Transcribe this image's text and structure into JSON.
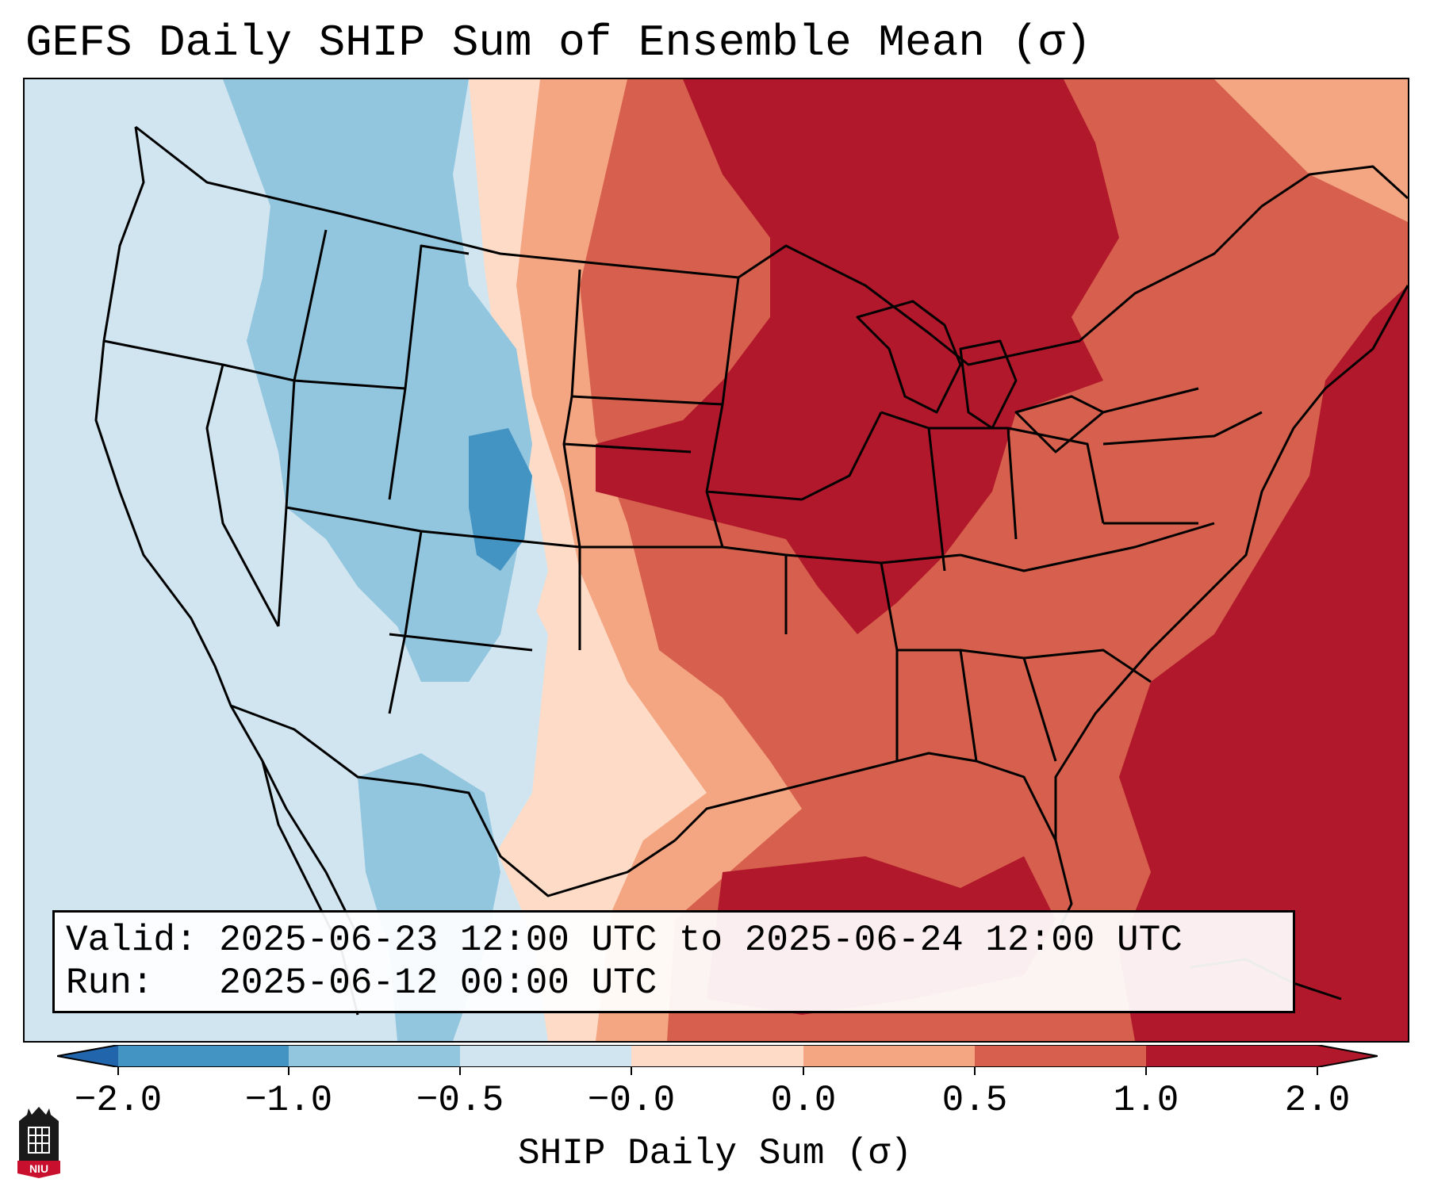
{
  "title": "GEFS Daily SHIP Sum of Ensemble Mean (σ)",
  "info": {
    "valid_line": "Valid: 2025-06-23 12:00 UTC to 2025-06-24 12:00 UTC",
    "run_line": "Run:   2025-06-12 00:00 UTC"
  },
  "colorbar": {
    "label": "SHIP Daily Sum (σ)",
    "ticks": [
      "−2.0",
      "−1.0",
      "−0.5",
      "−0.0",
      "0.0",
      "0.5",
      "1.0",
      "2.0"
    ],
    "colors": [
      "#2166ac",
      "#4393c3",
      "#92c5de",
      "#d1e5f0",
      "#fddbc7",
      "#f4a582",
      "#d6604d",
      "#b2182b"
    ]
  },
  "logo": {
    "text": "NIU",
    "name": "Northern Illinois University"
  }
}
